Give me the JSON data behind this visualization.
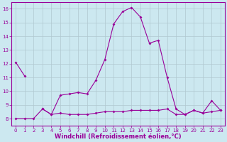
{
  "title": "",
  "xlabel": "Windchill (Refroidissement éolien,°C)",
  "ylabel": "",
  "background_color": "#cce8f0",
  "line_color": "#990099",
  "grid_color": "#b0c8d0",
  "hours": [
    0,
    1,
    2,
    3,
    4,
    5,
    6,
    7,
    8,
    9,
    10,
    11,
    12,
    13,
    14,
    15,
    16,
    17,
    18,
    19,
    20,
    21,
    22,
    23
  ],
  "temp": [
    12.1,
    11.1,
    null,
    8.7,
    8.3,
    9.7,
    9.8,
    9.9,
    9.8,
    10.8,
    12.3,
    14.9,
    15.8,
    16.1,
    15.4,
    13.5,
    13.7,
    11.0,
    8.7,
    8.3,
    8.6,
    8.4,
    9.3,
    8.6
  ],
  "windchill": [
    8.0,
    8.0,
    8.0,
    8.7,
    8.3,
    8.4,
    8.3,
    8.3,
    8.3,
    8.4,
    8.5,
    8.5,
    8.5,
    8.6,
    8.6,
    8.6,
    8.6,
    8.7,
    8.3,
    8.3,
    8.6,
    8.4,
    8.5,
    8.6
  ],
  "ylim": [
    7.5,
    16.5
  ],
  "yticks": [
    8,
    9,
    10,
    11,
    12,
    13,
    14,
    15,
    16
  ],
  "xticks": [
    0,
    1,
    2,
    3,
    4,
    5,
    6,
    7,
    8,
    9,
    10,
    11,
    12,
    13,
    14,
    15,
    16,
    17,
    18,
    19,
    20,
    21,
    22,
    23
  ],
  "xlim": [
    -0.5,
    23.5
  ],
  "tick_color": "#990099",
  "xlabel_color": "#990099",
  "tick_fontsize": 5.0,
  "xlabel_fontsize": 6.0
}
